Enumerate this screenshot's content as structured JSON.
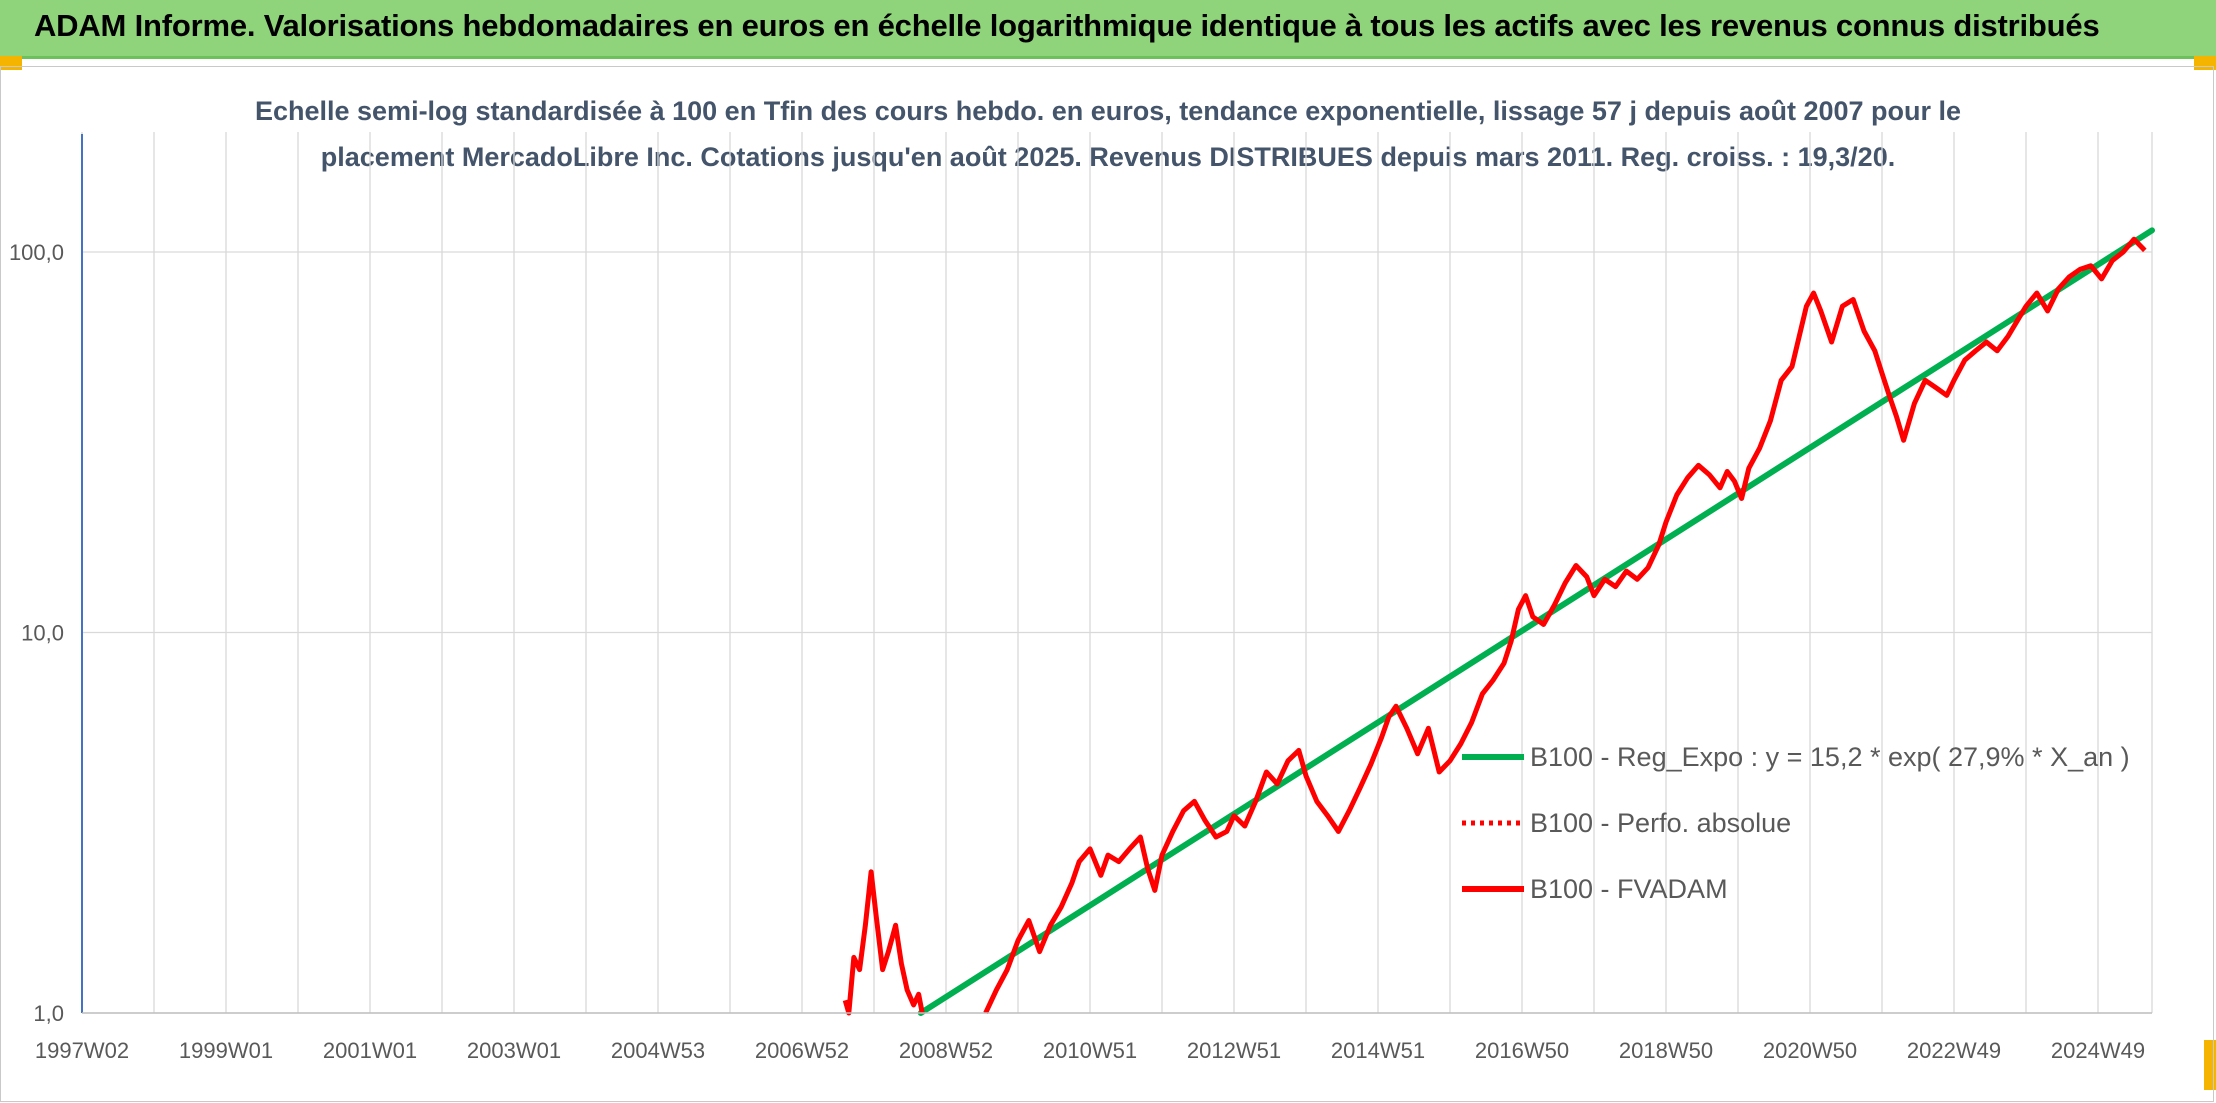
{
  "header": {
    "title": "ADAM Informe. Valorisations hebdomadaires en euros en échelle logarithmique identique à tous les actifs avec les revenus connus distribués"
  },
  "colors": {
    "banner": "#8fd37a",
    "trend": "#00b050",
    "fvadam": "#ff0000",
    "subtitle": "#44546a",
    "grid": "#d9d9d9",
    "axis_text": "#595959"
  },
  "chart_data": {
    "type": "line",
    "title_line1": "Echelle semi-log standardisée à 100 en Tfin des cours hebdo. en euros, tendance exponentielle, lissage 57 j depuis août 2007 pour le",
    "title_line2": "placement MercadoLibre Inc. Cotations jusqu'en août 2025. Revenus DISTRIBUES depuis mars 2011. Reg. croiss. : 19,3/20.",
    "y_scale": "log",
    "ylim": [
      1,
      100
    ],
    "y_ticks": [
      "1,0",
      "10,0",
      "100,0"
    ],
    "xlim": [
      1997.0,
      2025.75
    ],
    "x_tick_labels": [
      "1997W02",
      "1999W01",
      "2001W01",
      "2003W01",
      "2004W53",
      "2006W52",
      "2008W52",
      "2010W51",
      "2012W51",
      "2014W51",
      "2016W50",
      "2018W50",
      "2020W50",
      "2022W49",
      "2024W49"
    ],
    "x_tick_years": [
      1997.0,
      1999.0,
      2001.0,
      2003.0,
      2005.0,
      2007.0,
      2009.0,
      2011.0,
      2013.0,
      2015.0,
      2017.0,
      2019.0,
      2021.0,
      2023.0,
      2025.0
    ],
    "grid": true,
    "legend_position": "lower-right",
    "series": [
      {
        "name": "B100 - Reg_Expo : y = 15,2 * exp( 27,9% *  X_an )",
        "kind": "trend",
        "x": [
          2008.65,
          2025.75
        ],
        "y": [
          1.0,
          114.0
        ]
      },
      {
        "name": "B100 - Perfo. absolue",
        "kind": "dotted",
        "x": [],
        "y": []
      },
      {
        "name": "B100 - FVADAM",
        "kind": "solid",
        "x": [
          2007.6,
          2007.65,
          2007.72,
          2007.8,
          2007.88,
          2007.96,
          2008.03,
          2008.12,
          2008.2,
          2008.3,
          2008.38,
          2008.46,
          2008.55,
          2008.62,
          2008.67
        ],
        "y": [
          1.08,
          1.0,
          1.4,
          1.3,
          1.7,
          2.35,
          1.8,
          1.3,
          1.45,
          1.7,
          1.35,
          1.15,
          1.05,
          1.12,
          1.0
        ],
        "x2": [
          2009.55,
          2009.7,
          2009.85,
          2010.0,
          2010.15,
          2010.3,
          2010.45,
          2010.6,
          2010.75,
          2010.85,
          2011.0,
          2011.15,
          2011.25,
          2011.4,
          2011.55,
          2011.7,
          2011.8,
          2011.9,
          2012.0,
          2012.15,
          2012.3,
          2012.45,
          2012.6,
          2012.75,
          2012.9,
          2013.0,
          2013.15,
          2013.3,
          2013.45,
          2013.6,
          2013.75,
          2013.9,
          2014.0,
          2014.15,
          2014.3,
          2014.45,
          2014.6,
          2014.75,
          2014.9,
          2015.05,
          2015.15,
          2015.25,
          2015.4,
          2015.55,
          2015.7,
          2015.85,
          2016.0,
          2016.15,
          2016.3,
          2016.45,
          2016.6,
          2016.75,
          2016.85,
          2016.95,
          2017.05,
          2017.15,
          2017.3,
          2017.45,
          2017.6,
          2017.75,
          2017.9,
          2018.0,
          2018.15,
          2018.3,
          2018.45,
          2018.6,
          2018.75,
          2018.9,
          2019.0,
          2019.15,
          2019.3,
          2019.45,
          2019.6,
          2019.75,
          2019.85,
          2019.95,
          2020.05,
          2020.15,
          2020.3,
          2020.45,
          2020.6,
          2020.75,
          2020.85,
          2020.95,
          2021.05,
          2021.15,
          2021.3,
          2021.45,
          2021.6,
          2021.75,
          2021.9,
          2022.0,
          2022.1,
          2022.2,
          2022.3,
          2022.45,
          2022.6,
          2022.75,
          2022.9,
          2023.0,
          2023.15,
          2023.3,
          2023.45,
          2023.6,
          2023.75,
          2023.9,
          2024.0,
          2024.15,
          2024.3,
          2024.45,
          2024.6,
          2024.75,
          2024.9,
          2025.05,
          2025.2,
          2025.35,
          2025.5,
          2025.65
        ],
        "y2": [
          1.0,
          1.15,
          1.3,
          1.55,
          1.75,
          1.45,
          1.7,
          1.9,
          2.2,
          2.5,
          2.7,
          2.3,
          2.6,
          2.5,
          2.7,
          2.9,
          2.4,
          2.1,
          2.6,
          3.0,
          3.4,
          3.6,
          3.2,
          2.9,
          3.0,
          3.3,
          3.1,
          3.6,
          4.3,
          4.0,
          4.6,
          4.9,
          4.2,
          3.6,
          3.3,
          3.0,
          3.4,
          3.9,
          4.5,
          5.3,
          6.0,
          6.4,
          5.6,
          4.8,
          5.6,
          4.3,
          4.6,
          5.1,
          5.8,
          6.9,
          7.5,
          8.3,
          9.5,
          11.5,
          12.5,
          11.0,
          10.5,
          11.8,
          13.5,
          15.0,
          14.0,
          12.5,
          13.8,
          13.2,
          14.5,
          13.8,
          14.8,
          17.0,
          19.5,
          23.0,
          25.5,
          27.5,
          26.0,
          24.0,
          26.5,
          25.0,
          22.5,
          27.0,
          30.5,
          36.0,
          46.0,
          50.0,
          60.0,
          72.0,
          78.0,
          70.0,
          58.0,
          72.0,
          75.0,
          62.0,
          55.0,
          48.0,
          42.0,
          37.0,
          32.0,
          40.0,
          46.0,
          44.0,
          42.0,
          46.0,
          52.0,
          55.0,
          58.0,
          55.0,
          60.0,
          67.0,
          72.0,
          78.0,
          70.0,
          80.0,
          86.0,
          90.0,
          92.0,
          85.0,
          95.0,
          100.0,
          108.0,
          101.0
        ]
      }
    ]
  }
}
